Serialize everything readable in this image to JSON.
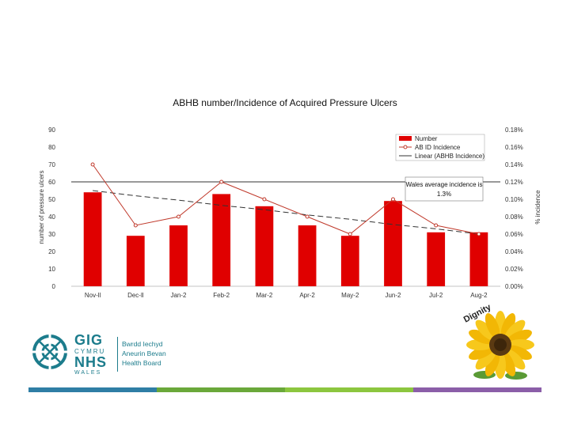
{
  "chart_data": {
    "type": "bar+line",
    "title": "ABHB number/Incidence of Acquired Pressure Ulcers",
    "categories": [
      "Nov-11",
      "Dec-11",
      "Jan-12",
      "Feb-12",
      "Mar-12",
      "Apr-12",
      "May-12",
      "Jun-12",
      "Jul-12",
      "Aug-12"
    ],
    "category_labels": [
      "Nov-ll",
      "Dec-ll",
      "Jan-2",
      "Feb-2",
      "Mar-2",
      "Apr-2",
      "May-2",
      "Jun-2",
      "Jul-2",
      "Aug-2"
    ],
    "series": [
      {
        "name": "Number",
        "type": "bar",
        "axis": "left",
        "color": "#e00000",
        "values": [
          54,
          29,
          35,
          53,
          46,
          35,
          29,
          49,
          31,
          31
        ]
      },
      {
        "name": "ABHB Incidence",
        "type": "line",
        "axis": "right",
        "color": "#c0392b",
        "values": [
          0.14,
          0.07,
          0.08,
          0.12,
          0.1,
          0.08,
          0.06,
          0.1,
          0.07,
          0.06
        ]
      },
      {
        "name": "Linear (ABHB Incidence)",
        "type": "trendline",
        "axis": "right",
        "color": "#333333",
        "values": [
          0.11,
          0.104,
          0.099,
          0.093,
          0.088,
          0.082,
          0.077,
          0.071,
          0.066,
          0.06
        ]
      }
    ],
    "legend_labels": [
      "Number",
      "AB ID Incidence",
      "Linear (ABHB Incidence)"
    ],
    "reference_line": {
      "value": 0.12,
      "axis": "right",
      "color": "#333333"
    },
    "ylabel": "number of pressure ulcers",
    "y2label": "% incidence",
    "ylim": [
      0,
      90
    ],
    "y2lim": [
      0,
      0.18
    ],
    "yticks": [
      "0",
      "10",
      "20",
      "30",
      "40",
      "50",
      "60",
      "70",
      "80",
      "90"
    ],
    "y2ticks": [
      "0.00%",
      "0.02%",
      "0.04%",
      "0.06%",
      "0.08%",
      "0.10%",
      "0.12%",
      "0.14%",
      "0.16%",
      "0.18%"
    ],
    "annotation": {
      "line1": "Wales average incidence is",
      "line2": "1.3%"
    },
    "legend_position": "top-right",
    "grid": false
  },
  "footer": {
    "logo": {
      "gig": "GIG",
      "cymru": "CYMRU",
      "nhs": "NHS",
      "wales": "WALES",
      "org_lines": [
        "Bwrdd Iechyd",
        "Aneurin Bevan",
        "Health Board"
      ]
    },
    "badge_text": "Dignity",
    "bar_colors": [
      "#2f7ea5",
      "#6aa83a",
      "#8cc63f",
      "#8b5ea8"
    ]
  }
}
